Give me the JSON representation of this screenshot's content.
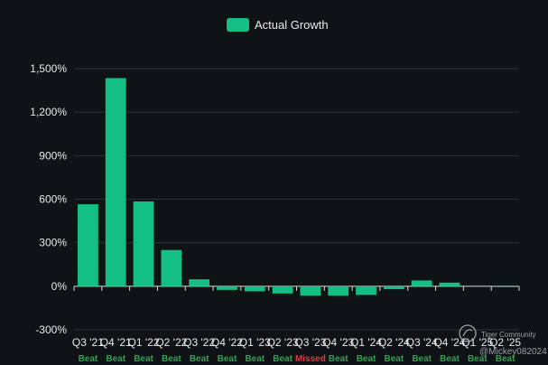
{
  "chart_data": {
    "type": "bar",
    "title": "",
    "xlabel": "",
    "ylabel": "",
    "ylim": [
      -300,
      1500
    ],
    "yticks": [
      -300,
      0,
      300,
      600,
      900,
      1200,
      1500
    ],
    "ytick_labels": [
      "-300%",
      "0%",
      "300%",
      "600%",
      "900%",
      "1,200%",
      "1,500%"
    ],
    "grid": true,
    "legend_position": "top-center",
    "series": [
      {
        "name": "Actual Growth",
        "color": "#14bf84",
        "values": [
          565,
          1435,
          585,
          250,
          48,
          -25,
          -35,
          -50,
          -65,
          -65,
          -60,
          -20,
          40,
          25,
          0,
          -5
        ]
      }
    ],
    "categories": [
      "Q3 '21",
      "Q4 '21",
      "Q1 '22",
      "Q2 '22",
      "Q3 '22",
      "Q4 '22",
      "Q1 '23",
      "Q2 '23",
      "Q3 '23",
      "Q4 '23",
      "Q1 '24",
      "Q2 '24",
      "Q3 '24",
      "Q4 '24",
      "Q1 '25",
      "Q2 '25"
    ],
    "results": [
      "Beat",
      "Beat",
      "Beat",
      "Beat",
      "Beat",
      "Beat",
      "Beat",
      "Beat",
      "Missed",
      "Beat",
      "Beat",
      "Beat",
      "Beat",
      "Beat",
      "Beat",
      "Beat"
    ],
    "result_colors": {
      "Beat": "#2ea44f",
      "Missed": "#e5383b"
    }
  },
  "watermark": {
    "brand": "Tiger Community",
    "handle": "@Mickey082024"
  }
}
